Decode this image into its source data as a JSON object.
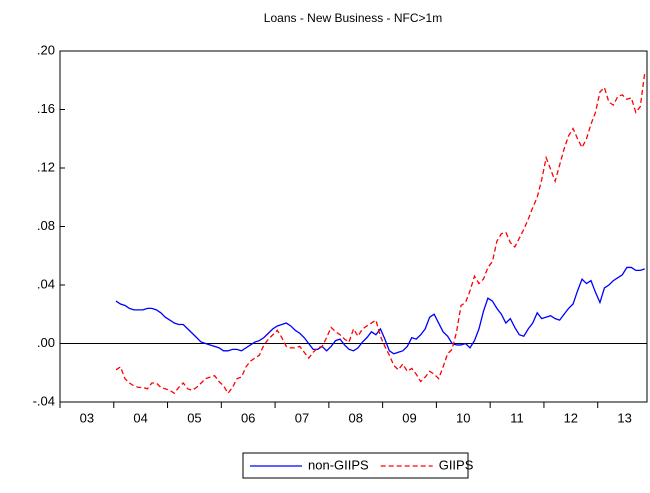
{
  "chart_data": {
    "type": "line",
    "title": "Loans - New Business - NFC>1m",
    "categories": [
      null,
      null,
      null,
      null,
      null,
      "03",
      null,
      null,
      null,
      null,
      null,
      null,
      null,
      null,
      null,
      null,
      null,
      "04",
      null,
      null,
      null,
      null,
      null,
      null,
      null,
      null,
      null,
      null,
      null,
      "05",
      null,
      null,
      null,
      null,
      null,
      null,
      null,
      null,
      null,
      null,
      null,
      "06",
      null,
      null,
      null,
      null,
      null,
      null,
      null,
      null,
      null,
      null,
      null,
      "07",
      null,
      null,
      null,
      null,
      null,
      null,
      null,
      null,
      null,
      null,
      null,
      "08",
      null,
      null,
      null,
      null,
      null,
      null,
      null,
      null,
      null,
      null,
      null,
      "09",
      null,
      null,
      null,
      null,
      null,
      null,
      null,
      null,
      null,
      null,
      null,
      "10",
      null,
      null,
      null,
      null,
      null,
      null,
      null,
      null,
      null,
      null,
      null,
      "11",
      null,
      null,
      null,
      null,
      null,
      null,
      null,
      null,
      null,
      null,
      null,
      "12",
      null,
      null,
      null,
      null,
      null,
      null,
      null,
      null,
      null,
      null,
      null,
      "13",
      null,
      null,
      null,
      null,
      null
    ],
    "series": [
      {
        "name": "non-GIIPS",
        "color": "#0000ff",
        "dash": false,
        "values": [
          null,
          null,
          null,
          null,
          null,
          null,
          null,
          null,
          null,
          null,
          null,
          null,
          0.029,
          0.027,
          0.026,
          0.024,
          0.023,
          0.023,
          0.023,
          0.024,
          0.024,
          0.023,
          0.021,
          0.018,
          0.016,
          0.014,
          0.013,
          0.013,
          0.01,
          0.007,
          0.004,
          0.001,
          0.0,
          -0.001,
          -0.002,
          -0.003,
          -0.005,
          -0.005,
          -0.004,
          -0.004,
          -0.005,
          -0.003,
          -0.001,
          0.001,
          0.002,
          0.004,
          0.007,
          0.01,
          0.012,
          0.013,
          0.014,
          0.012,
          0.009,
          0.007,
          0.004,
          0.0,
          -0.004,
          -0.004,
          -0.002,
          -0.005,
          -0.002,
          0.002,
          0.003,
          -0.001,
          -0.004,
          -0.005,
          -0.003,
          0.001,
          0.004,
          0.008,
          0.006,
          0.01,
          0.003,
          -0.005,
          -0.007,
          -0.006,
          -0.005,
          -0.002,
          0.004,
          0.003,
          0.006,
          0.01,
          0.018,
          0.02,
          0.014,
          0.008,
          0.005,
          0.0,
          -0.001,
          -0.001,
          0.0,
          -0.003,
          0.002,
          0.01,
          0.022,
          0.031,
          0.029,
          0.024,
          0.02,
          0.014,
          0.017,
          0.011,
          0.006,
          0.005,
          0.01,
          0.014,
          0.021,
          0.017,
          0.018,
          0.019,
          0.017,
          0.016,
          0.02,
          0.024,
          0.027,
          0.036,
          0.044,
          0.041,
          0.043,
          0.035,
          0.028,
          0.038,
          0.04,
          0.043,
          0.045,
          0.047,
          0.052,
          0.052,
          0.05,
          0.05,
          0.051
        ]
      },
      {
        "name": "GIIPS",
        "color": "#ff0000",
        "dash": true,
        "values": [
          null,
          null,
          null,
          null,
          null,
          null,
          null,
          null,
          null,
          null,
          null,
          null,
          -0.018,
          -0.016,
          -0.024,
          -0.027,
          -0.029,
          -0.03,
          -0.03,
          -0.031,
          -0.027,
          -0.027,
          -0.03,
          -0.031,
          -0.032,
          -0.034,
          -0.03,
          -0.027,
          -0.031,
          -0.032,
          -0.03,
          -0.027,
          -0.024,
          -0.023,
          -0.022,
          -0.026,
          -0.029,
          -0.034,
          -0.03,
          -0.024,
          -0.023,
          -0.016,
          -0.012,
          -0.01,
          -0.008,
          -0.001,
          0.003,
          0.006,
          0.009,
          0.004,
          -0.002,
          -0.003,
          -0.003,
          -0.002,
          -0.006,
          -0.01,
          -0.006,
          -0.003,
          -0.002,
          0.004,
          0.011,
          0.008,
          0.006,
          0.003,
          0.001,
          0.01,
          0.005,
          0.01,
          0.012,
          0.014,
          0.016,
          0.005,
          -0.002,
          -0.008,
          -0.015,
          -0.018,
          -0.014,
          -0.019,
          -0.017,
          -0.021,
          -0.026,
          -0.023,
          -0.019,
          -0.021,
          -0.024,
          -0.016,
          -0.007,
          -0.004,
          0.008,
          0.026,
          0.028,
          0.036,
          0.046,
          0.041,
          0.044,
          0.052,
          0.056,
          0.07,
          0.075,
          0.076,
          0.069,
          0.066,
          0.072,
          0.078,
          0.085,
          0.093,
          0.1,
          0.112,
          0.127,
          0.119,
          0.111,
          0.122,
          0.133,
          0.142,
          0.147,
          0.14,
          0.134,
          0.14,
          0.15,
          0.158,
          0.172,
          0.175,
          0.165,
          0.163,
          0.169,
          0.17,
          0.167,
          0.168,
          0.158,
          0.162,
          0.185
        ]
      }
    ],
    "ylim": [
      -0.04,
      0.2
    ],
    "yticks": [
      {
        "value": -0.04,
        "label": "-.04"
      },
      {
        "value": 0,
        "label": ".00"
      },
      {
        "value": 0.04,
        "label": ".04"
      },
      {
        "value": 0.08,
        "label": ".08"
      },
      {
        "value": 0.12,
        "label": ".12"
      },
      {
        "value": 0.16,
        "label": ".16"
      },
      {
        "value": 0.2,
        "label": ".20"
      }
    ],
    "zero_line": true,
    "legend": "bottom"
  }
}
